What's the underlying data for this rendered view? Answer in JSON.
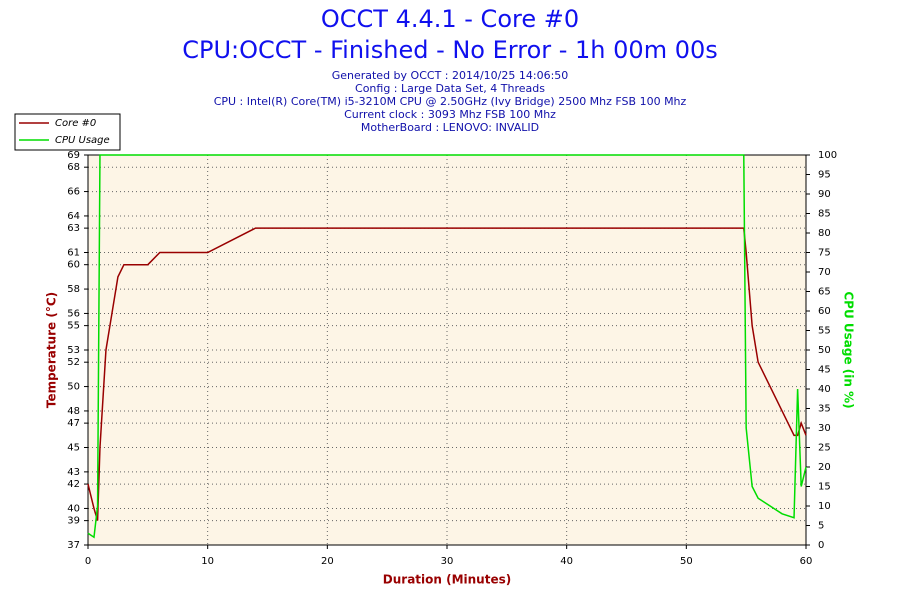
{
  "chart_data": {
    "type": "line",
    "title": "OCCT 4.4.1 - Core #0",
    "subtitle": "CPU:OCCT - Finished - No Error - 1h 00m 00s",
    "info": [
      "Generated by OCCT : 2014/10/25 14:06:50",
      "Config : Large Data Set, 4 Threads",
      "CPU : Intel(R) Core(TM) i5-3210M CPU @ 2.50GHz (Ivy Bridge) 2500 Mhz FSB 100 Mhz",
      "Current clock : 3093 Mhz FSB 100 Mhz",
      "MotherBoard : LENOVO: INVALID"
    ],
    "xlabel": "Duration (Minutes)",
    "ylabel": "Temperature (°C)",
    "y2label": "CPU Usage (in %)",
    "x": [
      0,
      0.5,
      0.8,
      1,
      1.5,
      2,
      2.5,
      3,
      4,
      5,
      6,
      7,
      8,
      10,
      12,
      14,
      16,
      18,
      20,
      22,
      24,
      26,
      28,
      30,
      32,
      34,
      36,
      38,
      40,
      42,
      44,
      46,
      48,
      50,
      52,
      54,
      54.8,
      55,
      55.5,
      56,
      57,
      58,
      59,
      59.3,
      59.6,
      60
    ],
    "series": [
      {
        "name": "Core #0",
        "color": "#990000",
        "values": [
          42,
          40,
          39,
          45,
          53,
          56,
          59,
          60,
          60,
          60,
          61,
          61,
          61,
          61,
          62,
          63,
          63,
          63,
          63,
          63,
          63,
          63,
          63,
          63,
          63,
          63,
          63,
          63,
          63,
          63,
          63,
          63,
          63,
          63,
          63,
          63,
          63,
          61,
          55,
          52,
          50,
          48,
          46,
          46,
          47,
          46
        ]
      },
      {
        "name": "CPU Usage",
        "color": "#00dd00",
        "axis": "y2",
        "values": [
          3,
          2,
          10,
          100,
          100,
          100,
          100,
          100,
          100,
          100,
          100,
          100,
          100,
          100,
          100,
          100,
          100,
          100,
          100,
          100,
          100,
          100,
          100,
          100,
          100,
          100,
          100,
          100,
          100,
          100,
          100,
          100,
          100,
          100,
          100,
          100,
          100,
          30,
          15,
          12,
          10,
          8,
          7,
          40,
          15,
          20
        ]
      }
    ],
    "xlim": [
      0,
      60
    ],
    "xticks": [
      0,
      10,
      20,
      30,
      40,
      50,
      60
    ],
    "ylim": [
      37,
      69
    ],
    "yticks": [
      37,
      39,
      40,
      42,
      43,
      45,
      47,
      48,
      50,
      52,
      53,
      55,
      56,
      58,
      60,
      61,
      63,
      64,
      66,
      68,
      69
    ],
    "y2lim": [
      0,
      100
    ],
    "y2ticks": [
      0,
      5,
      10,
      15,
      20,
      25,
      30,
      35,
      40,
      45,
      50,
      55,
      60,
      65,
      70,
      75,
      80,
      85,
      90,
      95,
      100
    ],
    "grid": true,
    "legend": "top-left"
  }
}
